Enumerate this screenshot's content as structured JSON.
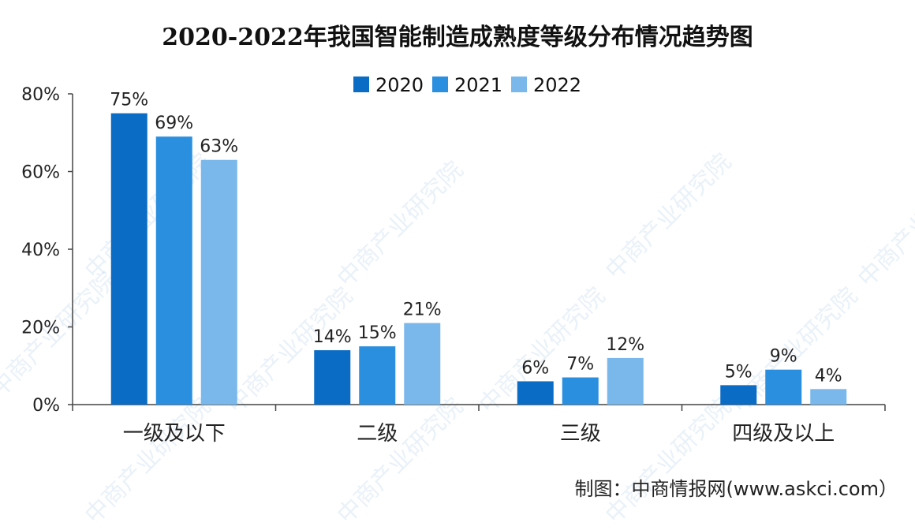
{
  "watermark": "中商产业研究院",
  "source": "制图：中商情报网(www.askci.com）",
  "chart_data": {
    "type": "bar",
    "title": "2020-2022年我国智能制造成熟度等级分布情况趋势图",
    "categories": [
      "一级及以下",
      "二级",
      "三级",
      "四级及以上"
    ],
    "series": [
      {
        "name": "2020",
        "values": [
          75,
          14,
          6,
          5
        ],
        "color": "#0a6cc4"
      },
      {
        "name": "2021",
        "values": [
          69,
          15,
          7,
          9
        ],
        "color": "#2b8fe0"
      },
      {
        "name": "2022",
        "values": [
          63,
          21,
          12,
          4
        ],
        "color": "#7ab8ec"
      }
    ],
    "data_labels": [
      [
        "75%",
        "14%",
        "6%",
        "5%"
      ],
      [
        "69%",
        "15%",
        "7%",
        "9%"
      ],
      [
        "63%",
        "21%",
        "12%",
        "4%"
      ]
    ],
    "ylim": [
      0,
      80
    ],
    "yticks": [
      "0%",
      "20%",
      "40%",
      "60%",
      "80%"
    ],
    "ytick_values": [
      0,
      20,
      40,
      60,
      80
    ],
    "legend_position": "top-center",
    "grid": false
  }
}
